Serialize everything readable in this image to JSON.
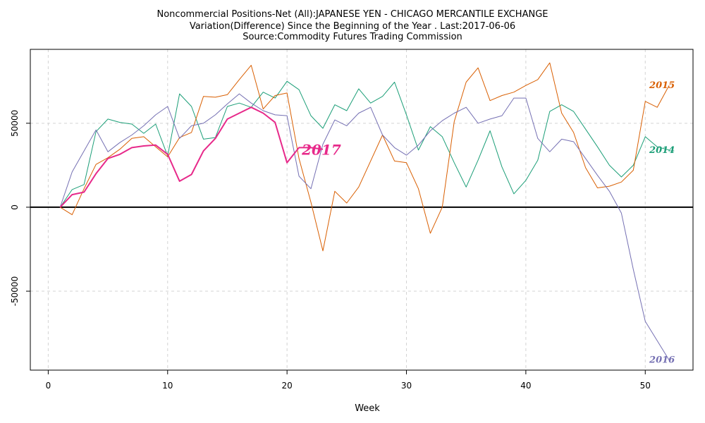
{
  "header": {
    "title": "Noncommercial Positions-Net (All):JAPANESE YEN - CHICAGO MERCANTILE EXCHANGE",
    "subtitle": "Variation(Difference) Since the Beginning of the Year . Last:2017-06-06",
    "source": "Source:Commodity Futures Trading Commission"
  },
  "chart_data": {
    "type": "line",
    "title": "Noncommercial Positions-Net (All):JAPANESE YEN - CHICAGO MERCANTILE EXCHANGE",
    "subtitle": "Variation(Difference) Since the Beginning of the Year . Last:2017-06-06",
    "source": "Source:Commodity Futures Trading Commission",
    "xlabel": "Week",
    "ylabel": "",
    "xlim": [
      -1.5,
      54
    ],
    "ylim": [
      -97000,
      94000
    ],
    "x_ticks": [
      0,
      10,
      20,
      30,
      40,
      50
    ],
    "y_ticks": [
      -50000,
      0,
      50000
    ],
    "x_tick_labels": [
      "0",
      "10",
      "20",
      "30",
      "40",
      "50"
    ],
    "y_tick_labels": [
      "-50000",
      "0",
      "50000"
    ],
    "grid": true,
    "zero_line": true,
    "series": [
      {
        "name": "2014",
        "color": "#1b9e77",
        "width": 1,
        "values": [
          0,
          10500,
          13500,
          45000,
          52500,
          50500,
          49500,
          44000,
          49500,
          30500,
          67500,
          60000,
          40500,
          41500,
          60000,
          62000,
          59500,
          68500,
          65000,
          75000,
          70000,
          54500,
          47000,
          61000,
          57500,
          70500,
          62000,
          66000,
          74500,
          55000,
          34000,
          48000,
          42000,
          26500,
          12000,
          28000,
          45500,
          24000,
          8000,
          16000,
          28000,
          57000,
          61000,
          57000,
          46500,
          36000,
          25000,
          18000,
          25000,
          42000,
          36000,
          34000
        ]
      },
      {
        "name": "2015",
        "color": "#d95f02",
        "width": 1,
        "values": [
          0,
          -4500,
          11000,
          25500,
          29500,
          34500,
          41000,
          42000,
          36000,
          30000,
          41500,
          44500,
          66000,
          65500,
          67000,
          76000,
          84500,
          58500,
          66500,
          68000,
          29000,
          3000,
          -26000,
          9500,
          2500,
          12000,
          27500,
          43000,
          27500,
          26500,
          11000,
          -15500,
          0,
          51000,
          74500,
          83000,
          63500,
          66500,
          68500,
          72500,
          76000,
          86000,
          56000,
          44500,
          23500,
          11500,
          12500,
          15000,
          22000,
          63000,
          59500,
          72500
        ]
      },
      {
        "name": "2016",
        "color": "#7570b3",
        "width": 1,
        "values": [
          0,
          21000,
          33500,
          46000,
          33000,
          38500,
          43000,
          48500,
          55000,
          60000,
          41000,
          48500,
          50000,
          55000,
          61500,
          67500,
          62000,
          57500,
          55000,
          54500,
          18500,
          11000,
          37500,
          52000,
          48500,
          56000,
          59500,
          43000,
          35500,
          31000,
          37000,
          45500,
          51500,
          56000,
          59500,
          50000,
          52500,
          54500,
          65000,
          65000,
          41000,
          33000,
          40500,
          39000,
          29000,
          19000,
          9500,
          -3500,
          -37000,
          -68000,
          -79500,
          -91000
        ]
      },
      {
        "name": "2017",
        "color": "#e7298a",
        "width": 2,
        "values": [
          0,
          7500,
          9000,
          20000,
          29000,
          31500,
          35500,
          36500,
          37000,
          31500,
          15500,
          19500,
          33500,
          41000,
          52500,
          56000,
          59500,
          56000,
          50500,
          26500,
          35500,
          35500,
          34500
        ]
      }
    ]
  }
}
